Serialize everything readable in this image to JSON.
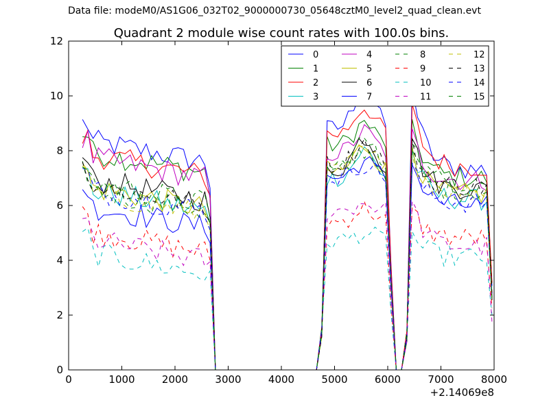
{
  "figure": {
    "suptitle": "Data file: modeM0/AS1G06_032T02_9000000730_05648cztM0_level2_quad_clean.evt"
  },
  "chart_data": {
    "type": "line",
    "title": "Quadrant 2 module wise count rates with 100.0s bins.",
    "xlabel": "",
    "ylabel": "",
    "x_offset_label": "+2.14069e8",
    "xlim": [
      0,
      8000
    ],
    "ylim": [
      0,
      12
    ],
    "xticks": [
      0,
      1000,
      2000,
      3000,
      4000,
      5000,
      6000,
      7000,
      8000
    ],
    "yticks": [
      0,
      2,
      4,
      6,
      8,
      10,
      12
    ],
    "legend": {
      "position": "top-right",
      "columns": 4
    },
    "grid": false,
    "x_segments": [
      {
        "start": 260,
        "end": 2760,
        "step": 100
      },
      {
        "start": 2760,
        "end": 4660,
        "step": 100
      },
      {
        "start": 4760,
        "end": 6460,
        "step": 100
      },
      {
        "start": 6460,
        "end": 7960,
        "step": 100
      }
    ],
    "series": [
      {
        "name": "0",
        "color": "#0000ff",
        "dash": "solid",
        "active_levels": [
          8.4,
          8.8,
          7.3,
          8.1
        ],
        "peak": 10.4
      },
      {
        "name": "1",
        "color": "#008000",
        "dash": "solid",
        "active_levels": [
          8.0,
          8.2,
          7.0,
          7.6
        ],
        "peak": 9.0
      },
      {
        "name": "2",
        "color": "#ff0000",
        "dash": "solid",
        "active_levels": [
          7.9,
          8.6,
          7.4,
          7.8
        ],
        "peak": 9.6
      },
      {
        "name": "3",
        "color": "#00bfbf",
        "dash": "solid",
        "active_levels": [
          6.6,
          7.0,
          6.2,
          6.8
        ],
        "peak": 8.0
      },
      {
        "name": "4",
        "color": "#bf00bf",
        "dash": "solid",
        "active_levels": [
          7.8,
          7.9,
          6.9,
          7.2
        ],
        "peak": 8.7
      },
      {
        "name": "5",
        "color": "#bfbf00",
        "dash": "solid",
        "active_levels": [
          6.7,
          7.2,
          6.4,
          6.7
        ],
        "peak": 8.2
      },
      {
        "name": "6",
        "color": "#000000",
        "dash": "solid",
        "active_levels": [
          7.0,
          7.3,
          6.6,
          6.9
        ],
        "peak": 8.5
      },
      {
        "name": "7",
        "color": "#0000ff",
        "dash": "solid",
        "active_levels": [
          6.0,
          7.0,
          6.0,
          6.2
        ],
        "peak": 7.6
      },
      {
        "name": "8",
        "color": "#008000",
        "dash": "dashed",
        "active_levels": [
          6.6,
          7.2,
          6.5,
          6.6
        ],
        "peak": 8.0
      },
      {
        "name": "9",
        "color": "#ff0000",
        "dash": "dashed",
        "active_levels": [
          5.1,
          5.4,
          4.8,
          4.9
        ],
        "peak": 5.9
      },
      {
        "name": "10",
        "color": "#00bfbf",
        "dash": "dashed",
        "active_levels": [
          4.3,
          4.7,
          4.1,
          4.1
        ],
        "peak": 5.0
      },
      {
        "name": "11",
        "color": "#bf00bf",
        "dash": "dashed",
        "active_levels": [
          4.8,
          5.8,
          4.5,
          4.6
        ],
        "peak": 6.1
      },
      {
        "name": "12",
        "color": "#bfbf00",
        "dash": "dashed",
        "active_levels": [
          6.5,
          7.3,
          6.5,
          6.9
        ],
        "peak": 8.0
      },
      {
        "name": "13",
        "color": "#000000",
        "dash": "dashed",
        "active_levels": [
          6.8,
          7.5,
          6.7,
          6.8
        ],
        "peak": 8.3
      },
      {
        "name": "14",
        "color": "#0000ff",
        "dash": "dashed",
        "active_levels": [
          6.6,
          7.0,
          6.1,
          6.3
        ],
        "peak": 7.5
      },
      {
        "name": "15",
        "color": "#008000",
        "dash": "dashed",
        "active_levels": [
          6.9,
          7.4,
          6.8,
          6.9
        ],
        "peak": 8.4
      }
    ]
  }
}
